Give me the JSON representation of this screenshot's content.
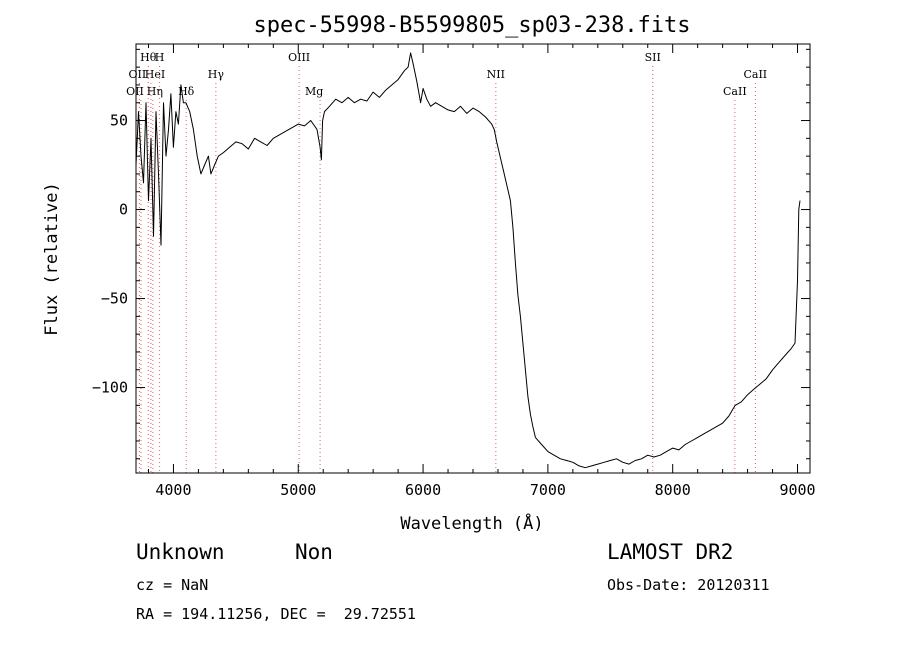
{
  "chart_data": {
    "type": "line",
    "title": "spec-55998-B5599805_sp03-238.fits",
    "xlabel": "Wavelength (Å)",
    "ylabel": "Flux (relative)",
    "xlim": [
      3700,
      9100
    ],
    "ylim": [
      -148,
      93
    ],
    "xticks": [
      4000,
      5000,
      6000,
      7000,
      8000,
      9000
    ],
    "yticks": [
      -100,
      -50,
      0,
      50
    ],
    "xtick_labels": [
      "4000",
      "5000",
      "6000",
      "7000",
      "8000",
      "9000"
    ],
    "ytick_labels": [
      "−100",
      "−50",
      "0",
      "50"
    ],
    "grid": false,
    "series": [
      {
        "x": [
          3700,
          3720,
          3740,
          3760,
          3780,
          3800,
          3820,
          3840,
          3860,
          3880,
          3900,
          3920,
          3940,
          3960,
          3980,
          4000,
          4020,
          4040,
          4060,
          4080,
          4100,
          4130,
          4160,
          4190,
          4220,
          4250,
          4280,
          4300,
          4330,
          4360,
          4400,
          4450,
          4500,
          4550,
          4600,
          4650,
          4700,
          4750,
          4800,
          4850,
          4900,
          4950,
          5000,
          5050,
          5100,
          5150,
          5175,
          5185,
          5195,
          5210,
          5250,
          5300,
          5350,
          5400,
          5450,
          5500,
          5550,
          5600,
          5650,
          5700,
          5750,
          5800,
          5850,
          5880,
          5900,
          5920,
          5950,
          5980,
          6000,
          6030,
          6060,
          6100,
          6150,
          6200,
          6250,
          6300,
          6350,
          6400,
          6450,
          6500,
          6550,
          6570,
          6590,
          6610,
          6650,
          6700,
          6720,
          6740,
          6760,
          6780,
          6800,
          6820,
          6840,
          6860,
          6880,
          6900,
          6950,
          7000,
          7050,
          7100,
          7150,
          7200,
          7250,
          7300,
          7350,
          7400,
          7450,
          7500,
          7550,
          7600,
          7650,
          7700,
          7750,
          7800,
          7850,
          7900,
          7950,
          8000,
          8050,
          8100,
          8150,
          8200,
          8250,
          8300,
          8350,
          8400,
          8450,
          8500,
          8550,
          8600,
          8650,
          8700,
          8750,
          8800,
          8850,
          8900,
          8950,
          8980,
          9000,
          9010,
          9020
        ],
        "y": [
          25,
          55,
          30,
          15,
          60,
          5,
          40,
          -15,
          55,
          20,
          -20,
          60,
          30,
          45,
          65,
          35,
          55,
          48,
          70,
          60,
          60,
          55,
          45,
          30,
          20,
          25,
          30,
          20,
          25,
          30,
          32,
          35,
          38,
          37,
          34,
          40,
          38,
          36,
          40,
          42,
          44,
          46,
          48,
          47,
          50,
          45,
          35,
          28,
          50,
          55,
          58,
          62,
          60,
          63,
          60,
          62,
          61,
          66,
          63,
          67,
          70,
          73,
          78,
          80,
          88,
          82,
          72,
          60,
          68,
          62,
          58,
          60,
          58,
          56,
          55,
          58,
          54,
          57,
          55,
          52,
          48,
          45,
          38,
          32,
          20,
          5,
          -10,
          -30,
          -48,
          -60,
          -75,
          -90,
          -105,
          -115,
          -122,
          -128,
          -132,
          -136,
          -138,
          -140,
          -141,
          -142,
          -144,
          -145,
          -144,
          -143,
          -142,
          -141,
          -140,
          -142,
          -143,
          -141,
          -140,
          -138,
          -139,
          -138,
          -136,
          -134,
          -135,
          -132,
          -130,
          -128,
          -126,
          -124,
          -122,
          -120,
          -116,
          -110,
          -108,
          -104,
          -101,
          -98,
          -95,
          -90,
          -86,
          -82,
          -78,
          -75,
          -40,
          0,
          5
        ]
      }
    ],
    "line_markers": [
      {
        "name": "Hθ",
        "x": 3798,
        "row": 1,
        "dx": 0
      },
      {
        "name": "H",
        "x": 3889,
        "row": 1,
        "dx": 0
      },
      {
        "name": "OII",
        "x": 3727,
        "row": 2,
        "dx": -2
      },
      {
        "name": "HeI",
        "x": 3820,
        "row": 2,
        "dx": 4
      },
      {
        "name": "Hγ",
        "x": 4340,
        "row": 2,
        "dx": 0
      },
      {
        "name": "OII",
        "x": 3740,
        "row": 3,
        "dx": -6
      },
      {
        "name": "Hη",
        "x": 3835,
        "row": 3,
        "dx": 2
      },
      {
        "name": "Hδ",
        "x": 4102,
        "row": 3,
        "dx": 0
      },
      {
        "name": "OIII",
        "x": 5007,
        "row": 1,
        "dx": 0
      },
      {
        "name": "Mg",
        "x": 5175,
        "row": 3,
        "dx": -6
      },
      {
        "name": "NII",
        "x": 6583,
        "row": 2,
        "dx": 0
      },
      {
        "name": "SII",
        "x": 7840,
        "row": 1,
        "dx": 0
      },
      {
        "name": "CaII",
        "x": 8662,
        "row": 2,
        "dx": 0
      },
      {
        "name": "CaII",
        "x": 8498,
        "row": 3,
        "dx": 0
      }
    ]
  },
  "info": {
    "class_label": "Unknown",
    "subclass_label": "Non",
    "survey": "LAMOST DR2",
    "cz": "cz = NaN",
    "obs_date": "Obs-Date: 20120311",
    "coords": "RA = 194.11256, DEC =  29.72551"
  },
  "colors": {
    "line": "#000000",
    "marker": "#e06060",
    "background": "#ffffff"
  }
}
